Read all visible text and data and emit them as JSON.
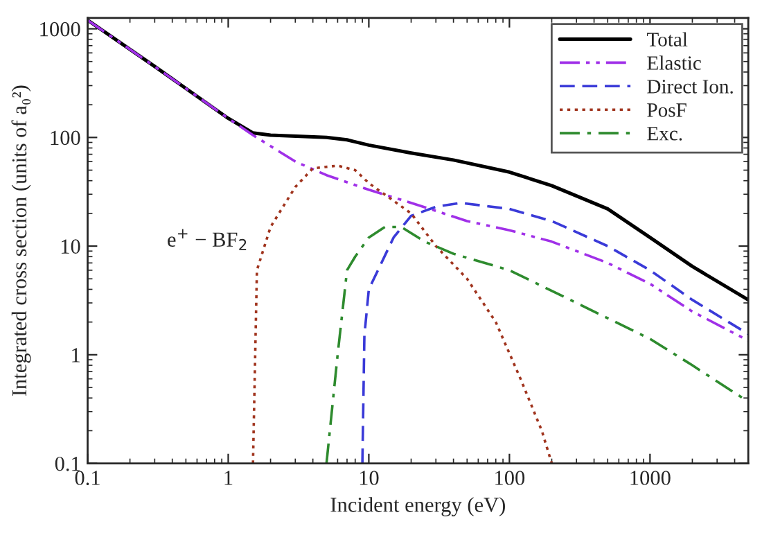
{
  "chart_data": {
    "type": "line",
    "xlabel": "Incident energy (eV)",
    "ylabel": "Integrated cross section (units of a₀²)",
    "log": "xy",
    "xlim": [
      0.1,
      5000
    ],
    "ylim": [
      0.1,
      1260
    ],
    "xticks": [
      0.1,
      1,
      10,
      100,
      1000
    ],
    "yticks": [
      0.1,
      1,
      10,
      100,
      1000
    ],
    "grid": false,
    "legend": "top right",
    "annotations": [
      "e$^{+}$ − BF$_{2}$"
    ],
    "series": [
      {
        "name": "Total",
        "color": "#000000",
        "line_style": "solid",
        "x": [
          0.1,
          0.3,
          1,
          1.5,
          2,
          5,
          7,
          10,
          20,
          40,
          100,
          200,
          500,
          1000,
          2000,
          5000
        ],
        "values": [
          1200,
          450,
          150,
          110,
          105,
          100,
          95,
          85,
          72,
          62,
          48,
          36,
          22,
          12,
          6.5,
          3.2
        ]
      },
      {
        "name": "Elastic",
        "color": "#a030e8",
        "line_style": "dashdotdot",
        "x": [
          0.1,
          0.3,
          1,
          1.5,
          3,
          5,
          10,
          20,
          50,
          100,
          200,
          500,
          1000,
          2000,
          5000
        ],
        "values": [
          1200,
          450,
          150,
          105,
          60,
          45,
          33,
          25,
          17,
          14,
          11,
          7,
          4.5,
          2.5,
          1.35
        ]
      },
      {
        "name": "Direct Ion.",
        "color": "#3a3ad8",
        "line_style": "dashed",
        "x": [
          9,
          9.3,
          10,
          15,
          20,
          30,
          45,
          100,
          200,
          500,
          1000,
          2000,
          5000
        ],
        "values": [
          0.1,
          1.5,
          4,
          12,
          19,
          23,
          25,
          22,
          17,
          10,
          6,
          3.2,
          1.55
        ]
      },
      {
        "name": "PosF",
        "color": "#a0341e",
        "line_style": "dotted",
        "x": [
          1.5,
          1.6,
          2,
          3,
          4,
          6,
          8,
          10,
          20,
          30,
          50,
          80,
          120,
          170,
          200
        ],
        "values": [
          0.1,
          6,
          15,
          35,
          52,
          55,
          50,
          38,
          20,
          10,
          5,
          2,
          0.6,
          0.2,
          0.1
        ]
      },
      {
        "name": "Exc.",
        "color": "#2e8b2e",
        "line_style": "dashdot",
        "x": [
          5,
          6,
          7,
          8,
          10,
          13,
          17,
          25,
          40,
          100,
          300,
          1000,
          2000,
          5000
        ],
        "values": [
          0.1,
          1,
          6,
          8,
          12,
          15,
          15,
          11,
          8.5,
          6,
          3,
          1.4,
          0.8,
          0.37
        ]
      }
    ]
  }
}
